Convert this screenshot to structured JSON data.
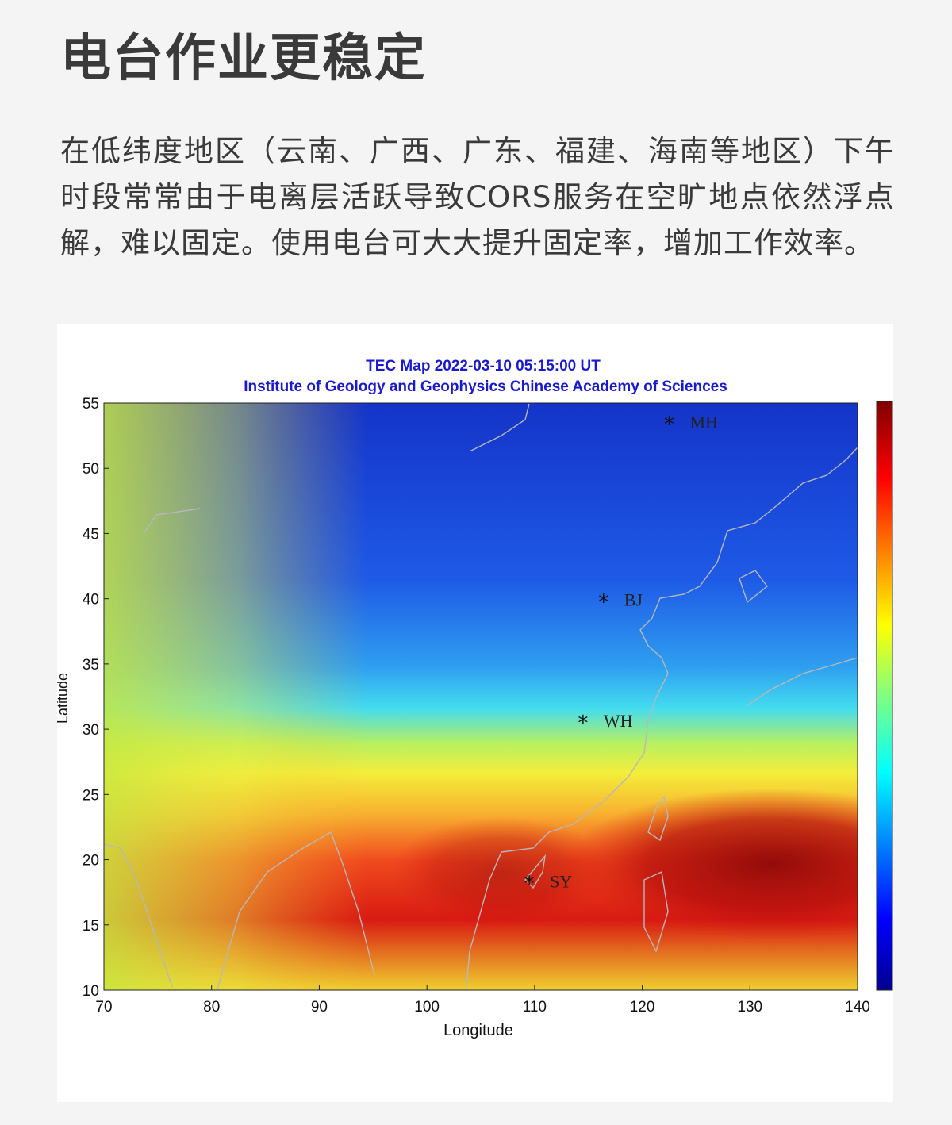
{
  "headline": "电台作业更稳定",
  "body_text": "在低纬度地区（云南、广西、广东、福建、海南等地区）下午时段常常由于电离层活跃导致CORS服务在空旷地点依然浮点解，难以固定。使用电台可大大提升固定率，增加工作效率。",
  "map": {
    "title": "TEC Map 2022-03-10 05:15:00 UT",
    "subtitle": "Institute of Geology and Geophysics Chinese Academy of Sciences",
    "xlabel": "Longitude",
    "ylabel": "Latitude",
    "x_ticks": [
      "70",
      "80",
      "90",
      "100",
      "110",
      "120",
      "130",
      "140"
    ],
    "y_ticks": [
      "55",
      "50",
      "45",
      "40",
      "35",
      "30",
      "25",
      "20",
      "15",
      "10"
    ],
    "xlim": [
      70,
      140
    ],
    "ylim": [
      10,
      55
    ],
    "stations": [
      {
        "name": "MH",
        "lon": 122.5,
        "lat": 53.5
      },
      {
        "name": "BJ",
        "lon": 116.4,
        "lat": 39.9
      },
      {
        "name": "WH",
        "lon": 114.5,
        "lat": 30.6
      },
      {
        "name": "SY",
        "lon": 109.5,
        "lat": 18.3
      }
    ],
    "colormap": "jet",
    "colors": {
      "title": "#1a1acc",
      "coastline": "#b8b8b8"
    }
  }
}
